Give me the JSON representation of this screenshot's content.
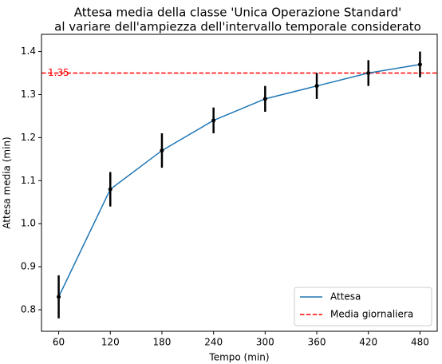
{
  "chart_data": {
    "type": "line",
    "title": "Attesa media della classe 'Unica Operazione Standard'",
    "subtitle": "al variare dell'ampiezza dell'intervallo temporale considerato",
    "xlabel": "Tempo (min)",
    "ylabel": "Attesa media (min)",
    "x": [
      60,
      120,
      180,
      240,
      300,
      360,
      420,
      480
    ],
    "x_tick_labels": [
      "60",
      "120",
      "180",
      "240",
      "300",
      "360",
      "420",
      "480"
    ],
    "xlim": [
      40,
      500
    ],
    "ylim": [
      0.75,
      1.44
    ],
    "y_ticks": [
      0.8,
      0.9,
      1.0,
      1.1,
      1.2,
      1.3,
      1.4
    ],
    "y_tick_labels": [
      "0.8",
      "0.9",
      "1.0",
      "1.1",
      "1.2",
      "1.3",
      "1.4"
    ],
    "series": [
      {
        "name": "Attesa",
        "color": "#1f77b4",
        "values": [
          0.83,
          1.08,
          1.17,
          1.24,
          1.29,
          1.32,
          1.35,
          1.37
        ],
        "error": [
          0.05,
          0.04,
          0.04,
          0.03,
          0.03,
          0.03,
          0.03,
          0.03
        ]
      }
    ],
    "reference_line": {
      "name": "Media giornaliera",
      "value": 1.35,
      "label": "1.35",
      "color": "#ff0000",
      "style": "dashed"
    },
    "legend_position": "bottom-right",
    "grid": false
  }
}
